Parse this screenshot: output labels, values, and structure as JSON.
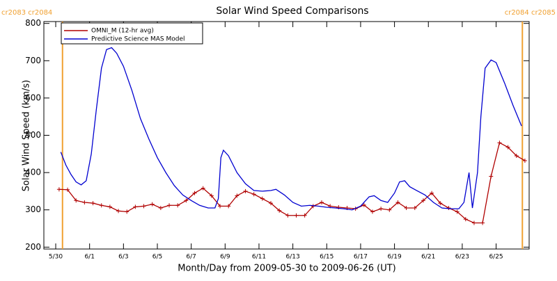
{
  "chart_data": {
    "type": "line",
    "title": "Solar Wind Speed Comparisons",
    "xlabel": "Month/Day from 2009-05-30 to 2009-06-26 (UT)",
    "ylabel": "Solar Wind Speed (km/s)",
    "xlim": [
      -0.7,
      27.95
    ],
    "xticks": [
      {
        "value": 0,
        "label": "5/30"
      },
      {
        "value": 2,
        "label": "6/1"
      },
      {
        "value": 4,
        "label": "6/3"
      },
      {
        "value": 6,
        "label": "6/5"
      },
      {
        "value": 8,
        "label": "6/7"
      },
      {
        "value": 10,
        "label": "6/9"
      },
      {
        "value": 12,
        "label": "6/11"
      },
      {
        "value": 14,
        "label": "6/13"
      },
      {
        "value": 16,
        "label": "6/15"
      },
      {
        "value": 18,
        "label": "6/17"
      },
      {
        "value": 20,
        "label": "6/19"
      },
      {
        "value": 22,
        "label": "6/21"
      },
      {
        "value": 24,
        "label": "6/23"
      },
      {
        "value": 26,
        "label": "6/25"
      }
    ],
    "ylim": [
      195,
      805
    ],
    "yticks": [
      200,
      300,
      400,
      500,
      600,
      700,
      800
    ],
    "legend": "upper left",
    "boundaries": [
      {
        "x": 0.4,
        "label": "cr2083 cr2084",
        "color": "#f0a030"
      },
      {
        "x": 27.55,
        "label": "cr2084 cr2085",
        "color": "#f0a030"
      }
    ],
    "series": [
      {
        "name": "OMNI_M (12-hr avg)",
        "color": "#b00000",
        "markers": true,
        "x": [
          0.2,
          0.7,
          1.2,
          1.7,
          2.2,
          2.7,
          3.2,
          3.7,
          4.2,
          4.7,
          5.2,
          5.7,
          6.2,
          6.7,
          7.2,
          7.7,
          8.2,
          8.7,
          9.2,
          9.7,
          10.2,
          10.7,
          11.2,
          11.7,
          12.2,
          12.7,
          13.2,
          13.7,
          14.2,
          14.7,
          15.2,
          15.7,
          16.2,
          16.7,
          17.2,
          17.7,
          18.2,
          18.7,
          19.2,
          19.7,
          20.2,
          20.7,
          21.2,
          21.7,
          22.2,
          22.7,
          23.2,
          23.7,
          24.2,
          24.7,
          25.2,
          25.7,
          26.2,
          26.7,
          27.2,
          27.7
        ],
        "values": [
          355,
          354,
          325,
          320,
          318,
          312,
          308,
          297,
          295,
          308,
          310,
          315,
          305,
          312,
          312,
          325,
          345,
          358,
          338,
          310,
          310,
          338,
          350,
          342,
          330,
          318,
          298,
          285,
          285,
          285,
          310,
          320,
          310,
          307,
          305,
          303,
          313,
          295,
          303,
          300,
          320,
          305,
          305,
          325,
          345,
          318,
          305,
          295,
          275,
          265,
          265,
          390,
          480,
          468,
          445,
          432
        ]
      },
      {
        "name": "Predictive Science MAS Model",
        "color": "#0000d0",
        "markers": false,
        "x": [
          0.3,
          0.6,
          0.9,
          1.2,
          1.5,
          1.8,
          2.1,
          2.4,
          2.7,
          3.0,
          3.3,
          3.6,
          4.0,
          4.5,
          5.0,
          5.5,
          6.0,
          6.5,
          7.0,
          7.5,
          8.0,
          8.5,
          9.0,
          9.4,
          9.6,
          9.75,
          9.9,
          10.2,
          10.7,
          11.2,
          11.7,
          12.2,
          12.7,
          13.0,
          13.5,
          14.0,
          14.5,
          15.0,
          15.5,
          16.0,
          16.5,
          17.0,
          17.5,
          18.0,
          18.5,
          18.8,
          19.2,
          19.6,
          20.0,
          20.3,
          20.6,
          20.9,
          21.3,
          21.8,
          22.3,
          22.8,
          23.3,
          23.8,
          24.1,
          24.4,
          24.6,
          24.9,
          25.1,
          25.35,
          25.7,
          26.0,
          26.5,
          27.0,
          27.5
        ],
        "values": [
          455,
          420,
          395,
          375,
          367,
          378,
          450,
          570,
          680,
          730,
          735,
          720,
          685,
          620,
          545,
          490,
          440,
          400,
          365,
          340,
          325,
          312,
          305,
          305,
          330,
          440,
          460,
          445,
          400,
          370,
          352,
          350,
          352,
          355,
          340,
          320,
          310,
          312,
          310,
          307,
          305,
          303,
          300,
          310,
          335,
          338,
          325,
          320,
          345,
          375,
          378,
          362,
          352,
          340,
          320,
          305,
          303,
          303,
          320,
          400,
          305,
          400,
          550,
          680,
          702,
          695,
          640,
          580,
          525
        ]
      }
    ]
  }
}
